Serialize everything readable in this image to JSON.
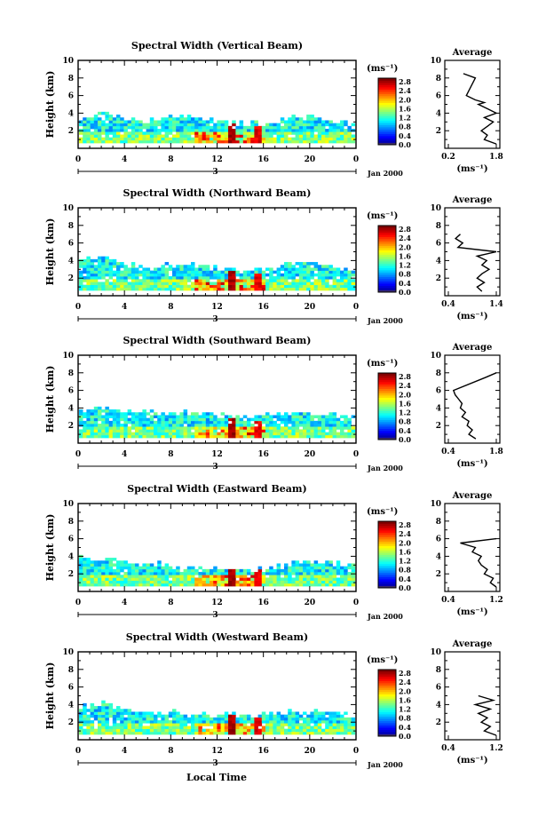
{
  "figure": {
    "x_axis_title": "Local Time",
    "unit_label": "(ms⁻¹)",
    "avg_xlabel": "(ms⁻¹)",
    "date_label": "Jan 2000",
    "day_label": "3",
    "avg_title": "Average",
    "height_label": "Height (km)"
  },
  "chart_data": [
    {
      "type": "heatmap",
      "title": "Spectral Width (Vertical Beam)",
      "xlabel": "Local Time",
      "ylabel": "Height (km)",
      "xlim": [
        0,
        24
      ],
      "ylim": [
        0,
        10
      ],
      "x_ticks": [
        "0",
        "4",
        "8",
        "12",
        "16",
        "20",
        "0"
      ],
      "y_ticks": [
        "2",
        "4",
        "6",
        "8",
        "10"
      ],
      "colorbar": {
        "label": "(ms⁻¹)",
        "ticks": [
          "2.8",
          "2.4",
          "2.0",
          "1.6",
          "1.2",
          "0.8",
          "0.4",
          "0.0"
        ]
      },
      "top_by_hour": [
        3.2,
        3.6,
        3.8,
        3.4,
        3.2,
        3.0,
        2.9,
        3.0,
        3.2,
        3.3,
        3.4,
        3.0,
        2.8,
        2.6,
        2.6,
        2.6,
        2.6,
        2.8,
        3.2,
        3.4,
        3.4,
        3.2,
        2.8,
        2.6,
        2.6
      ],
      "average_profile": {
        "xlabel": "(ms⁻¹)",
        "xlim": [
          0.2,
          1.8
        ],
        "x_ticks": [
          "0.2",
          "1.8"
        ],
        "heights": [
          0.5,
          1.0,
          1.5,
          2.0,
          2.5,
          3.0,
          3.5,
          4.0,
          4.5,
          5.0,
          5.2,
          5.5,
          6.0,
          8.0,
          8.5
        ],
        "values": [
          1.8,
          1.4,
          1.5,
          1.3,
          1.5,
          1.7,
          1.4,
          1.8,
          1.5,
          1.2,
          1.4,
          1.1,
          0.8,
          1.1,
          0.7
        ]
      }
    },
    {
      "type": "heatmap",
      "title": "Spectral Width (Northward Beam)",
      "xlabel": "Local Time",
      "ylabel": "Height (km)",
      "xlim": [
        0,
        24
      ],
      "ylim": [
        0,
        10
      ],
      "x_ticks": [
        "0",
        "4",
        "8",
        "12",
        "16",
        "20",
        "0"
      ],
      "y_ticks": [
        "2",
        "4",
        "6",
        "8",
        "10"
      ],
      "colorbar": {
        "label": "(ms⁻¹)",
        "ticks": [
          "2.8",
          "2.4",
          "2.0",
          "1.6",
          "1.2",
          "0.8",
          "0.4",
          "0.0"
        ]
      },
      "top_by_hour": [
        3.8,
        3.9,
        4.2,
        3.6,
        3.4,
        3.2,
        3.0,
        3.1,
        3.2,
        3.3,
        3.2,
        3.0,
        2.9,
        2.8,
        2.7,
        2.6,
        2.8,
        3.0,
        3.4,
        3.6,
        3.4,
        3.2,
        3.0,
        2.8,
        2.7
      ],
      "average_profile": {
        "xlabel": "(ms⁻¹)",
        "xlim": [
          0.4,
          1.4
        ],
        "x_ticks": [
          "0.4",
          "1.4"
        ],
        "heights": [
          0.5,
          1.0,
          1.5,
          2.0,
          2.5,
          3.0,
          3.5,
          4.0,
          4.5,
          5.0,
          5.5,
          6.0,
          6.5,
          7.0
        ],
        "values": [
          1.1,
          1.0,
          1.15,
          1.0,
          1.1,
          1.25,
          1.1,
          1.2,
          1.0,
          1.4,
          0.6,
          0.7,
          0.55,
          0.65
        ]
      }
    },
    {
      "type": "heatmap",
      "title": "Spectral Width (Southward Beam)",
      "xlabel": "Local Time",
      "ylabel": "Height (km)",
      "xlim": [
        0,
        24
      ],
      "ylim": [
        0,
        10
      ],
      "x_ticks": [
        "0",
        "4",
        "8",
        "12",
        "16",
        "20",
        "0"
      ],
      "y_ticks": [
        "2",
        "4",
        "6",
        "8",
        "10"
      ],
      "colorbar": {
        "label": "(ms⁻¹)",
        "ticks": [
          "2.8",
          "2.4",
          "2.0",
          "1.6",
          "1.2",
          "0.8",
          "0.4",
          "0.0"
        ]
      },
      "top_by_hour": [
        3.6,
        3.8,
        3.8,
        3.6,
        3.4,
        3.3,
        3.2,
        3.1,
        3.3,
        3.2,
        3.1,
        3.0,
        2.9,
        2.7,
        2.8,
        2.6,
        2.8,
        3.0,
        3.2,
        3.4,
        3.3,
        3.1,
        3.0,
        2.8,
        2.7
      ],
      "average_profile": {
        "xlabel": "(ms⁻¹)",
        "xlim": [
          0.4,
          1.8
        ],
        "x_ticks": [
          "0.4",
          "1.8"
        ],
        "heights": [
          0.5,
          1.0,
          1.5,
          2.0,
          2.5,
          3.0,
          3.5,
          4.0,
          4.5,
          5.0,
          5.5,
          6.0,
          7.5,
          8.0
        ],
        "values": [
          1.2,
          1.0,
          1.1,
          0.95,
          1.0,
          0.8,
          0.9,
          0.75,
          0.8,
          0.7,
          0.6,
          0.55,
          1.5,
          1.8
        ]
      }
    },
    {
      "type": "heatmap",
      "title": "Spectral Width (Eastward Beam)",
      "xlabel": "Local Time",
      "ylabel": "Height (km)",
      "xlim": [
        0,
        24
      ],
      "ylim": [
        0,
        10
      ],
      "x_ticks": [
        "0",
        "4",
        "8",
        "12",
        "16",
        "20",
        "0"
      ],
      "y_ticks": [
        "2",
        "4",
        "6",
        "8",
        "10"
      ],
      "colorbar": {
        "label": "(ms⁻¹)",
        "ticks": [
          "2.8",
          "2.4",
          "2.0",
          "1.6",
          "1.2",
          "0.8",
          "0.4",
          "0.0"
        ]
      },
      "top_by_hour": [
        3.6,
        3.6,
        3.4,
        3.4,
        3.2,
        3.0,
        2.9,
        2.8,
        2.6,
        2.6,
        2.4,
        2.3,
        2.3,
        2.2,
        2.2,
        2.2,
        2.3,
        2.5,
        2.8,
        3.2,
        3.3,
        3.2,
        3.0,
        2.8,
        2.6
      ],
      "average_profile": {
        "xlabel": "(ms⁻¹)",
        "xlim": [
          0.4,
          1.2
        ],
        "x_ticks": [
          "0.4",
          "1.2"
        ],
        "heights": [
          0.5,
          1.0,
          1.5,
          2.0,
          2.5,
          3.0,
          3.5,
          4.0,
          4.5,
          5.0,
          5.5,
          6.0
        ],
        "values": [
          1.2,
          1.1,
          1.15,
          1.0,
          1.05,
          0.95,
          0.9,
          0.95,
          0.8,
          0.85,
          0.6,
          1.2
        ]
      }
    },
    {
      "type": "heatmap",
      "title": "Spectral Width (Westward Beam)",
      "xlabel": "Local Time",
      "ylabel": "Height (km)",
      "xlim": [
        0,
        24
      ],
      "ylim": [
        0,
        10
      ],
      "x_ticks": [
        "0",
        "4",
        "8",
        "12",
        "16",
        "20",
        "0"
      ],
      "y_ticks": [
        "2",
        "4",
        "6",
        "8",
        "10"
      ],
      "colorbar": {
        "label": "(ms⁻¹)",
        "ticks": [
          "2.8",
          "2.4",
          "2.0",
          "1.6",
          "1.2",
          "0.8",
          "0.4",
          "0.0"
        ]
      },
      "top_by_hour": [
        3.4,
        3.6,
        4.0,
        3.5,
        3.2,
        3.1,
        3.0,
        2.9,
        2.9,
        2.8,
        2.7,
        2.7,
        2.6,
        2.6,
        2.5,
        2.5,
        2.6,
        2.7,
        2.9,
        3.0,
        3.0,
        2.9,
        2.8,
        2.7,
        2.6
      ],
      "average_profile": {
        "xlabel": "(ms⁻¹)",
        "xlim": [
          0.4,
          1.2
        ],
        "x_ticks": [
          "0.4",
          "1.2"
        ],
        "heights": [
          0.5,
          1.0,
          1.5,
          2.0,
          2.5,
          3.0,
          3.5,
          4.0,
          4.5,
          5.0
        ],
        "values": [
          1.2,
          1.0,
          1.1,
          0.95,
          1.05,
          0.9,
          1.1,
          0.85,
          1.15,
          0.9
        ]
      }
    }
  ]
}
